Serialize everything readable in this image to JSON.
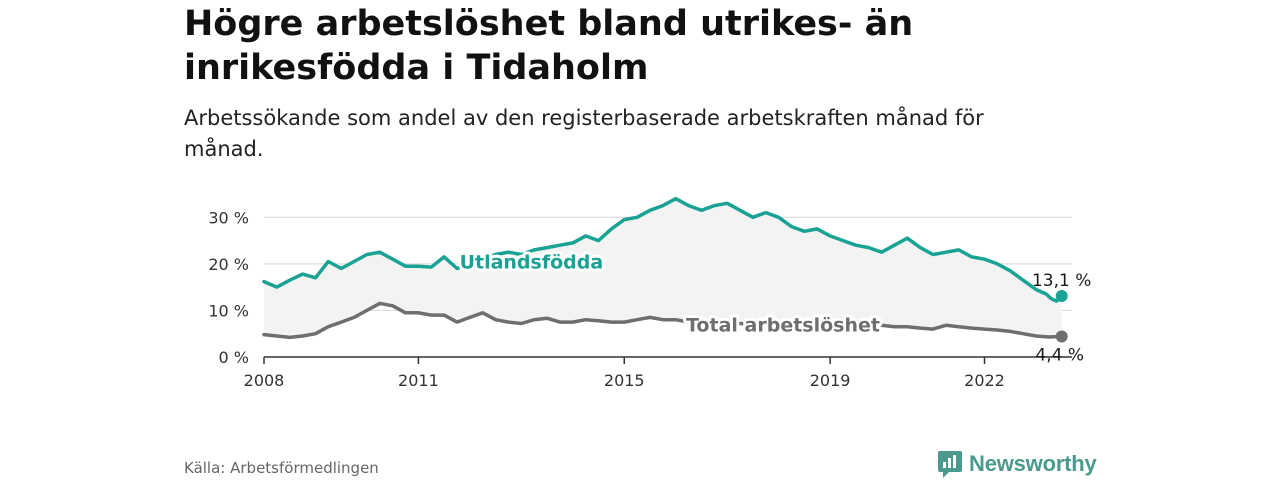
{
  "title": "Högre arbetslöshet bland utrikes- än inrikesfödda i Tidaholm",
  "subtitle": "Arbetssökande som andel av den registerbaserade arbetskraften månad för månad.",
  "source": "Källa: Arbetsförmedlingen",
  "brand": "Newsworthy",
  "colors": {
    "utlands": "#1aa394",
    "total": "#6e6e6e",
    "band": "#f3f3f3",
    "grid": "#dddddd",
    "brand": "#4a9a8d"
  },
  "chart_data": {
    "type": "line",
    "title": "Högre arbetslöshet bland utrikes- än inrikesfödda i Tidaholm",
    "xlabel": "",
    "ylabel": "",
    "xlim": [
      2008,
      2023.7
    ],
    "ylim": [
      0,
      35
    ],
    "grid": true,
    "x_ticks": [
      {
        "value": 2008,
        "label": "2008"
      },
      {
        "value": 2011,
        "label": "2011"
      },
      {
        "value": 2015,
        "label": "2015"
      },
      {
        "value": 2019,
        "label": "2019"
      },
      {
        "value": 2022,
        "label": "2022"
      }
    ],
    "y_ticks": [
      {
        "value": 0,
        "label": "0 %"
      },
      {
        "value": 10,
        "label": "10 %"
      },
      {
        "value": 20,
        "label": "20 %"
      },
      {
        "value": 30,
        "label": "30 %"
      }
    ],
    "series": [
      {
        "name": "Utlandsfödda",
        "end_label": "13,1 %",
        "x": [
          2008.0,
          2008.25,
          2008.5,
          2008.75,
          2009.0,
          2009.25,
          2009.5,
          2009.75,
          2010.0,
          2010.25,
          2010.5,
          2010.75,
          2011.0,
          2011.25,
          2011.5,
          2011.75,
          2012.0,
          2012.25,
          2012.5,
          2012.75,
          2013.0,
          2013.25,
          2013.5,
          2013.75,
          2014.0,
          2014.25,
          2014.5,
          2014.75,
          2015.0,
          2015.25,
          2015.5,
          2015.75,
          2016.0,
          2016.25,
          2016.5,
          2016.75,
          2017.0,
          2017.25,
          2017.5,
          2017.75,
          2018.0,
          2018.25,
          2018.5,
          2018.75,
          2019.0,
          2019.25,
          2019.5,
          2019.75,
          2020.0,
          2020.25,
          2020.5,
          2020.75,
          2021.0,
          2021.25,
          2021.5,
          2021.75,
          2022.0,
          2022.25,
          2022.5,
          2022.75,
          2023.0,
          2023.2,
          2023.3,
          2023.4,
          2023.5
        ],
        "values": [
          16.2,
          15.0,
          16.5,
          17.8,
          17.0,
          20.5,
          19.0,
          20.5,
          22.0,
          22.5,
          21.0,
          19.5,
          19.5,
          19.3,
          21.5,
          19.0,
          20.0,
          21.0,
          22.0,
          22.5,
          22.0,
          23.0,
          23.5,
          24.0,
          24.5,
          26.0,
          25.0,
          27.5,
          29.5,
          30.0,
          31.5,
          32.5,
          34.0,
          32.5,
          31.5,
          32.5,
          33.0,
          31.5,
          30.0,
          31.0,
          30.0,
          28.0,
          27.0,
          27.5,
          26.0,
          25.0,
          24.0,
          23.5,
          22.5,
          24.0,
          25.5,
          23.5,
          22.0,
          22.5,
          23.0,
          21.5,
          21.0,
          20.0,
          18.5,
          16.5,
          14.5,
          13.5,
          12.5,
          12.0,
          13.1
        ]
      },
      {
        "name": "Total arbetslöshet",
        "end_label": "4,4 %",
        "x": [
          2008.0,
          2008.25,
          2008.5,
          2008.75,
          2009.0,
          2009.25,
          2009.5,
          2009.75,
          2010.0,
          2010.25,
          2010.5,
          2010.75,
          2011.0,
          2011.25,
          2011.5,
          2011.75,
          2012.0,
          2012.25,
          2012.5,
          2012.75,
          2013.0,
          2013.25,
          2013.5,
          2013.75,
          2014.0,
          2014.25,
          2014.5,
          2014.75,
          2015.0,
          2015.25,
          2015.5,
          2015.75,
          2016.0,
          2016.25,
          2016.5,
          2016.75,
          2017.0,
          2017.25,
          2017.5,
          2017.75,
          2018.0,
          2018.25,
          2018.5,
          2018.75,
          2019.0,
          2019.25,
          2019.5,
          2019.75,
          2020.0,
          2020.25,
          2020.5,
          2020.75,
          2021.0,
          2021.25,
          2021.5,
          2021.75,
          2022.0,
          2022.25,
          2022.5,
          2022.75,
          2023.0,
          2023.25,
          2023.5
        ],
        "values": [
          4.8,
          4.5,
          4.2,
          4.5,
          5.0,
          6.5,
          7.5,
          8.5,
          10.0,
          11.5,
          11.0,
          9.5,
          9.5,
          9.0,
          9.0,
          7.5,
          8.5,
          9.5,
          8.0,
          7.5,
          7.2,
          8.0,
          8.3,
          7.5,
          7.5,
          8.0,
          7.8,
          7.5,
          7.5,
          8.0,
          8.5,
          8.0,
          8.0,
          7.5,
          7.5,
          7.8,
          7.5,
          7.2,
          7.0,
          7.3,
          7.0,
          7.0,
          6.8,
          6.8,
          6.5,
          6.5,
          6.3,
          6.5,
          6.8,
          6.5,
          6.5,
          6.2,
          6.0,
          6.8,
          6.5,
          6.2,
          6.0,
          5.8,
          5.5,
          5.0,
          4.5,
          4.3,
          4.4
        ]
      }
    ],
    "annotations": [
      {
        "series": "Utlandsfödda",
        "text": "Utlandsfödda",
        "x": 2011.8,
        "y": 20.5
      },
      {
        "series": "Total arbetslöshet",
        "text": "Total arbetslöshet",
        "x": 2016.2,
        "y": 7.0
      }
    ]
  }
}
